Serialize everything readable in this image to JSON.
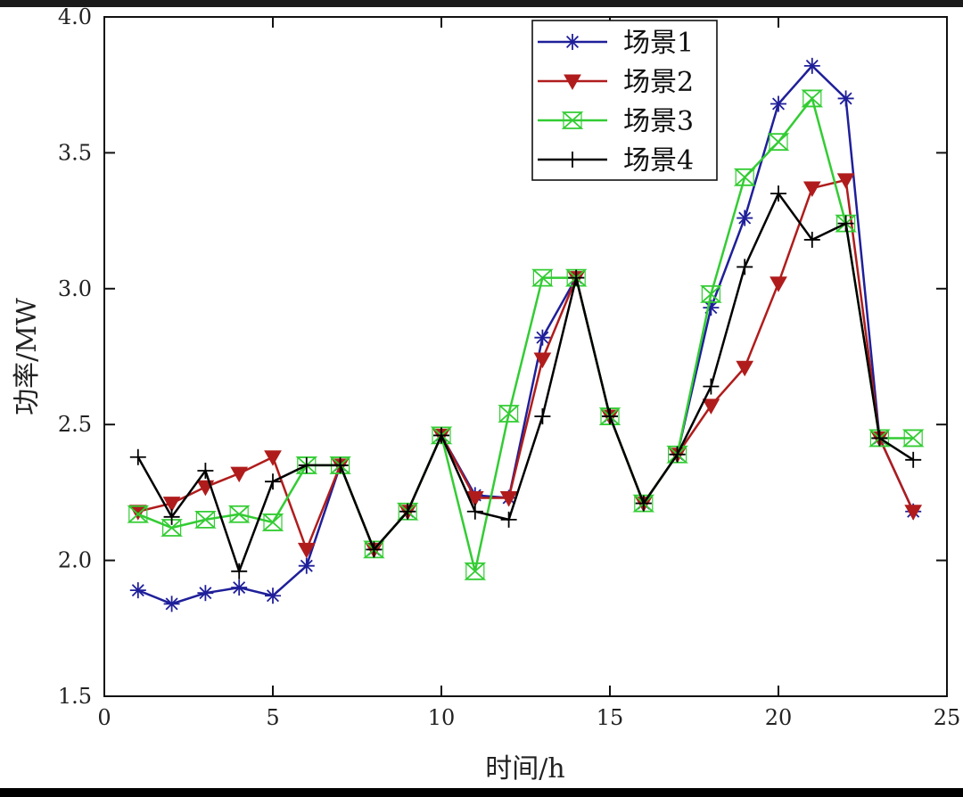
{
  "chart_data": {
    "type": "line",
    "xlabel": "时间/h",
    "ylabel": "功率/MW",
    "xlim": [
      0,
      25
    ],
    "ylim": [
      1.5,
      4.0
    ],
    "xticks": [
      "0",
      "5",
      "10",
      "15",
      "20",
      "25"
    ],
    "yticks": [
      "1.5",
      "2.0",
      "2.5",
      "3.0",
      "3.5",
      "4.0"
    ],
    "x": [
      1,
      2,
      3,
      4,
      5,
      6,
      7,
      8,
      9,
      10,
      11,
      12,
      13,
      14,
      15,
      16,
      17,
      18,
      19,
      20,
      21,
      22,
      23,
      24
    ],
    "legend_position": "top-right",
    "series": [
      {
        "name": "场景1",
        "color": "#1f1f9a",
        "marker": "asterisk",
        "values": [
          1.89,
          1.84,
          1.88,
          1.9,
          1.87,
          1.98,
          2.35,
          2.04,
          2.18,
          2.46,
          2.24,
          2.23,
          2.82,
          3.04,
          2.53,
          2.21,
          2.39,
          2.93,
          3.26,
          3.68,
          3.82,
          3.7,
          2.45,
          2.18
        ]
      },
      {
        "name": "场景2",
        "color": "#b01c1c",
        "marker": "triangle-down",
        "values": [
          2.18,
          2.21,
          2.27,
          2.32,
          2.38,
          2.04,
          2.35,
          2.04,
          2.18,
          2.46,
          2.23,
          2.23,
          2.74,
          3.04,
          2.53,
          2.21,
          2.39,
          2.57,
          2.71,
          3.02,
          3.37,
          3.4,
          2.45,
          2.18
        ]
      },
      {
        "name": "场景3",
        "color": "#33cc33",
        "marker": "hourglass",
        "values": [
          2.17,
          2.12,
          2.15,
          2.17,
          2.14,
          2.35,
          2.35,
          2.04,
          2.18,
          2.46,
          1.96,
          2.54,
          3.04,
          3.04,
          2.53,
          2.21,
          2.39,
          2.98,
          3.41,
          3.54,
          3.7,
          3.24,
          2.45,
          2.45
        ]
      },
      {
        "name": "场景4",
        "color": "#000000",
        "marker": "plus",
        "values": [
          2.38,
          2.16,
          2.33,
          1.96,
          2.29,
          2.35,
          2.35,
          2.04,
          2.18,
          2.46,
          2.18,
          2.15,
          2.53,
          3.04,
          2.53,
          2.21,
          2.39,
          2.64,
          3.08,
          3.35,
          3.18,
          3.24,
          2.45,
          2.37
        ]
      }
    ]
  }
}
